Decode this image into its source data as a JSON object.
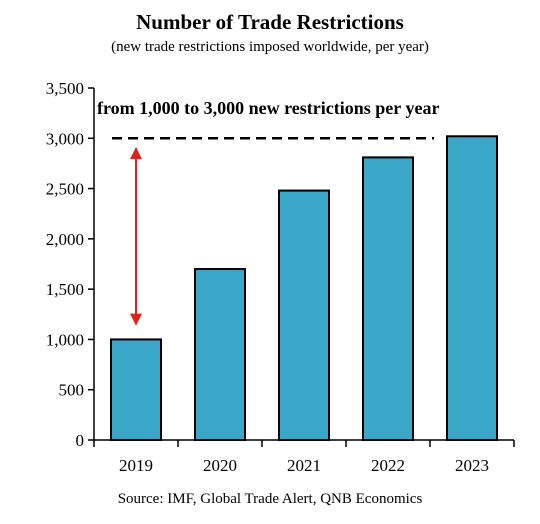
{
  "chart_data": {
    "type": "bar",
    "title": "Number of Trade Restrictions",
    "subtitle": "(new trade restrictions imposed worldwide, per year)",
    "categories": [
      "2019",
      "2020",
      "2021",
      "2022",
      "2023"
    ],
    "values": [
      1000,
      1700,
      2480,
      2810,
      3020
    ],
    "ylim": [
      0,
      3500
    ],
    "yticks": [
      0,
      500,
      1000,
      1500,
      2000,
      2500,
      3000,
      3500
    ],
    "ytick_labels": [
      "0",
      "500",
      "1,000",
      "1,500",
      "2,000",
      "2,500",
      "3,000",
      "3,500"
    ],
    "xlabel": "",
    "ylabel": "",
    "grid": false,
    "bar_color": "#3aa6c8",
    "annotation": {
      "text": "from 1,000 to 3,000 new restrictions per year",
      "reference_line_value": 3000,
      "arrow_from": 3000,
      "arrow_to": 1000,
      "arrow_color": "#e0201b"
    },
    "source": "Source: IMF, Global Trade Alert, QNB Economics"
  }
}
